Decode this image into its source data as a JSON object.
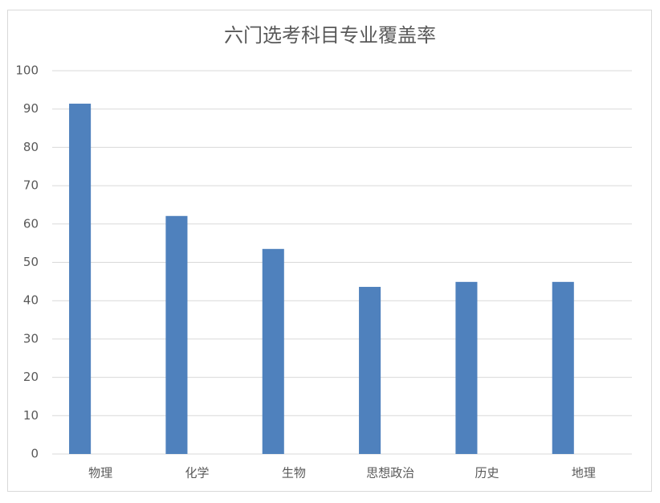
{
  "chart_data": {
    "type": "bar",
    "title": "六门选考科目专业覆盖率",
    "categories": [
      "物理",
      "化学",
      "生物",
      "思想政治",
      "历史",
      "地理"
    ],
    "values": [
      91.4,
      62.1,
      53.5,
      43.6,
      44.9,
      44.9
    ],
    "color": "#4f81bd",
    "ylim": [
      0,
      100
    ],
    "yticks": [
      0,
      10,
      20,
      30,
      40,
      50,
      60,
      70,
      80,
      90,
      100
    ],
    "grid": true
  }
}
